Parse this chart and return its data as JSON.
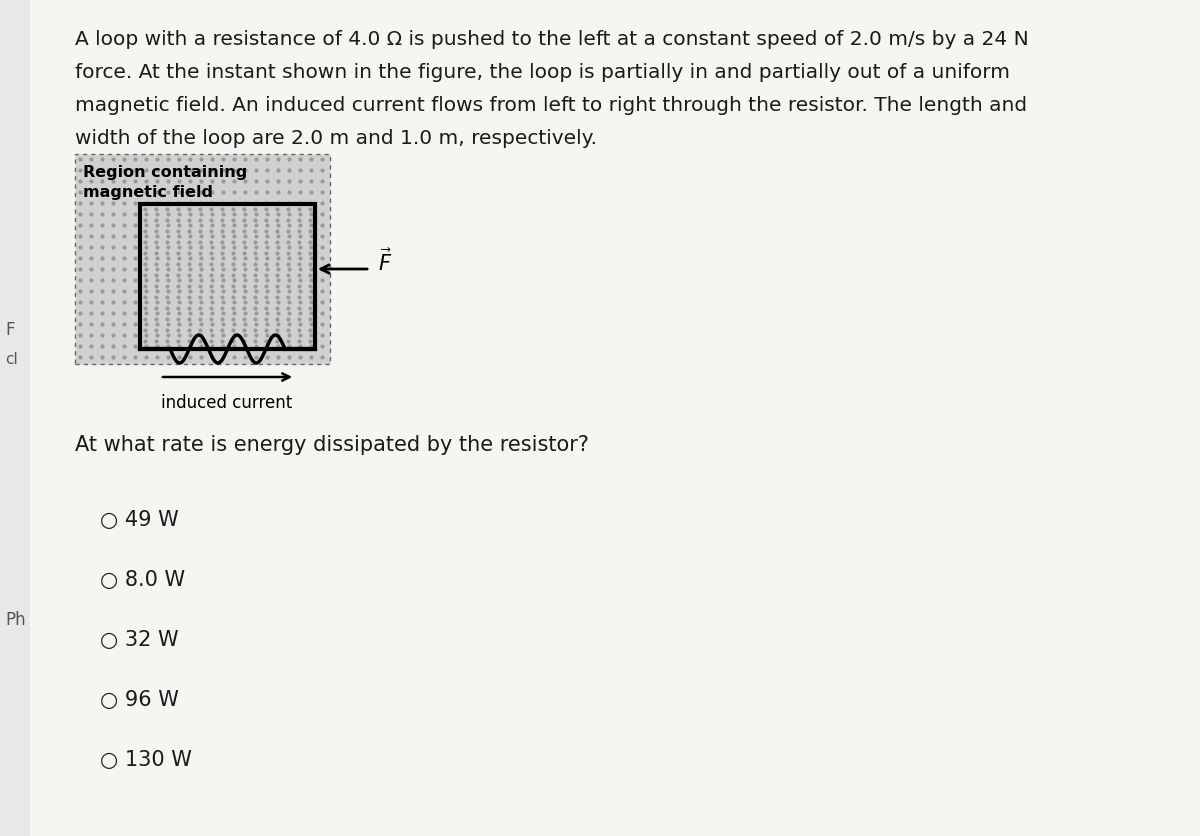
{
  "bg_color": "#ffffff",
  "text_color": "#1a1a1a",
  "para_line1": "A loop with a resistance of 4.0 Ω is pushed to the left at a constant speed of 2.0 m/s by a 24 N",
  "para_line2": "force. At the instant shown in the figure, the loop is partially in and partially out of a uniform",
  "para_line3": "magnetic field. An induced current flows from left to right through the resistor. The length and",
  "para_line4": "width of the loop are 2.0 m and 1.0 m, respectively.",
  "region_label_line1": "Region containing",
  "region_label_line2": "magnetic field",
  "question": "At what rate is energy dissipated by the resistor?",
  "options": [
    "○ 49 W",
    "○ 8.0 W",
    "○ 32 W",
    "○ 96 W",
    "○ 130 W"
  ],
  "dot_color": "#aaaaaa",
  "dot_bg": "#d8d8d8",
  "loop_lw": 3.0,
  "induced_current_label": "induced current",
  "left_edge_f": "F",
  "left_edge_cl": "cl",
  "side_label_ph": "Ph"
}
